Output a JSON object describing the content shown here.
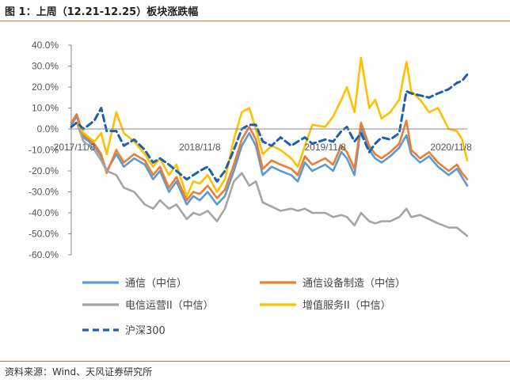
{
  "header": {
    "title": "图 1：上周（12.21-12.25）板块涨跌幅"
  },
  "footer": {
    "source": "资料来源：Wind、天风证券研究所"
  },
  "chart_data": {
    "type": "line",
    "title": "",
    "xlabel": "",
    "ylabel": "",
    "ylim": [
      -60,
      40
    ],
    "yticks": [
      40,
      30,
      20,
      10,
      0,
      -10,
      -20,
      -30,
      -40,
      -50,
      -60
    ],
    "ytick_labels": [
      "40.0%",
      "30.0%",
      "20.0%",
      "10.0%",
      "0.0%",
      "-10.0%",
      "-20.0%",
      "-30.0%",
      "-40.0%",
      "-50.0%",
      "-60.0%"
    ],
    "xlim": [
      "2017-10-30",
      "2020-12-25"
    ],
    "xtick_labels": [
      "2017/11/8",
      "2018/11/8",
      "2019/11/8",
      "2020/11/8"
    ],
    "xtick_dates": [
      "2017-11-08",
      "2018-11-08",
      "2019-11-08",
      "2020-11-08"
    ],
    "legend_position": "bottom",
    "series": [
      {
        "name": "通信（中信）",
        "color": "#5b9bd5",
        "dash": "solid",
        "points": [
          [
            "2017-10-30",
            2
          ],
          [
            "2017-11-15",
            6
          ],
          [
            "2017-12-05",
            -4
          ],
          [
            "2018-01-05",
            -8
          ],
          [
            "2018-01-25",
            -13
          ],
          [
            "2018-02-10",
            -20
          ],
          [
            "2018-03-10",
            -12
          ],
          [
            "2018-04-01",
            -18
          ],
          [
            "2018-05-01",
            -14
          ],
          [
            "2018-06-01",
            -17
          ],
          [
            "2018-06-25",
            -24
          ],
          [
            "2018-07-15",
            -20
          ],
          [
            "2018-08-10",
            -30
          ],
          [
            "2018-09-01",
            -25
          ],
          [
            "2018-10-01",
            -36
          ],
          [
            "2018-10-20",
            -32
          ],
          [
            "2018-11-08",
            -34
          ],
          [
            "2018-12-01",
            -30
          ],
          [
            "2018-12-28",
            -36
          ],
          [
            "2019-01-20",
            -32
          ],
          [
            "2019-02-15",
            -20
          ],
          [
            "2019-03-10",
            -8
          ],
          [
            "2019-04-01",
            -2
          ],
          [
            "2019-04-20",
            -8
          ],
          [
            "2019-05-10",
            -22
          ],
          [
            "2019-06-05",
            -18
          ],
          [
            "2019-07-01",
            -20
          ],
          [
            "2019-08-01",
            -22
          ],
          [
            "2019-08-20",
            -25
          ],
          [
            "2019-09-10",
            -16
          ],
          [
            "2019-10-01",
            -20
          ],
          [
            "2019-11-08",
            -17
          ],
          [
            "2019-12-01",
            -20
          ],
          [
            "2019-12-25",
            -11
          ],
          [
            "2020-01-10",
            -14
          ],
          [
            "2020-02-01",
            -22
          ],
          [
            "2020-02-20",
            1
          ],
          [
            "2020-03-15",
            -10
          ],
          [
            "2020-04-01",
            -14
          ],
          [
            "2020-04-20",
            -16
          ],
          [
            "2020-05-15",
            -13
          ],
          [
            "2020-06-10",
            -9
          ],
          [
            "2020-07-01",
            -3
          ],
          [
            "2020-07-15",
            -12
          ],
          [
            "2020-08-10",
            -16
          ],
          [
            "2020-09-05",
            -13
          ],
          [
            "2020-10-01",
            -18
          ],
          [
            "2020-11-01",
            -22
          ],
          [
            "2020-11-25",
            -19
          ],
          [
            "2020-12-10",
            -23
          ],
          [
            "2020-12-25",
            -27
          ]
        ]
      },
      {
        "name": "通信设备制造（中信）",
        "color": "#ed7d31",
        "dash": "solid",
        "points": [
          [
            "2017-10-30",
            3
          ],
          [
            "2017-11-15",
            7
          ],
          [
            "2017-12-05",
            -3
          ],
          [
            "2018-01-05",
            -7
          ],
          [
            "2018-01-25",
            -12
          ],
          [
            "2018-02-10",
            -21
          ],
          [
            "2018-03-10",
            -10
          ],
          [
            "2018-04-01",
            -16
          ],
          [
            "2018-05-01",
            -12
          ],
          [
            "2018-06-01",
            -15
          ],
          [
            "2018-06-25",
            -22
          ],
          [
            "2018-07-15",
            -18
          ],
          [
            "2018-08-10",
            -28
          ],
          [
            "2018-09-01",
            -23
          ],
          [
            "2018-10-01",
            -34
          ],
          [
            "2018-10-20",
            -30
          ],
          [
            "2018-11-08",
            -31
          ],
          [
            "2018-12-01",
            -27
          ],
          [
            "2018-12-28",
            -33
          ],
          [
            "2019-01-20",
            -29
          ],
          [
            "2019-02-15",
            -17
          ],
          [
            "2019-03-10",
            -5
          ],
          [
            "2019-04-01",
            1
          ],
          [
            "2019-04-20",
            -5
          ],
          [
            "2019-05-10",
            -19
          ],
          [
            "2019-06-05",
            -15
          ],
          [
            "2019-07-01",
            -17
          ],
          [
            "2019-08-01",
            -19
          ],
          [
            "2019-08-20",
            -22
          ],
          [
            "2019-09-10",
            -13
          ],
          [
            "2019-10-01",
            -17
          ],
          [
            "2019-11-08",
            -14
          ],
          [
            "2019-12-01",
            -17
          ],
          [
            "2019-12-25",
            -8
          ],
          [
            "2020-01-10",
            -11
          ],
          [
            "2020-02-01",
            -19
          ],
          [
            "2020-02-20",
            3
          ],
          [
            "2020-03-15",
            -8
          ],
          [
            "2020-04-01",
            -12
          ],
          [
            "2020-04-20",
            -14
          ],
          [
            "2020-05-15",
            -11
          ],
          [
            "2020-06-10",
            -7
          ],
          [
            "2020-07-01",
            4
          ],
          [
            "2020-07-15",
            -10
          ],
          [
            "2020-08-10",
            -14
          ],
          [
            "2020-09-05",
            -11
          ],
          [
            "2020-10-01",
            -16
          ],
          [
            "2020-11-01",
            -20
          ],
          [
            "2020-11-25",
            -17
          ],
          [
            "2020-12-10",
            -21
          ],
          [
            "2020-12-25",
            -24
          ]
        ]
      },
      {
        "name": "电信运营II（中信）",
        "color": "#a5a5a5",
        "dash": "solid",
        "points": [
          [
            "2017-10-30",
            1
          ],
          [
            "2017-11-15",
            3
          ],
          [
            "2017-12-05",
            -6
          ],
          [
            "2018-01-05",
            -10
          ],
          [
            "2018-01-25",
            -15
          ],
          [
            "2018-02-10",
            -20
          ],
          [
            "2018-03-10",
            -22
          ],
          [
            "2018-04-01",
            -28
          ],
          [
            "2018-05-01",
            -30
          ],
          [
            "2018-06-01",
            -36
          ],
          [
            "2018-06-25",
            -38
          ],
          [
            "2018-07-15",
            -34
          ],
          [
            "2018-08-10",
            -38
          ],
          [
            "2018-09-01",
            -36
          ],
          [
            "2018-10-01",
            -43
          ],
          [
            "2018-10-20",
            -40
          ],
          [
            "2018-11-08",
            -41
          ],
          [
            "2018-12-01",
            -39
          ],
          [
            "2018-12-28",
            -44
          ],
          [
            "2019-01-20",
            -38
          ],
          [
            "2019-02-15",
            -25
          ],
          [
            "2019-03-10",
            -21
          ],
          [
            "2019-04-01",
            -27
          ],
          [
            "2019-04-20",
            -25
          ],
          [
            "2019-05-10",
            -35
          ],
          [
            "2019-06-05",
            -37
          ],
          [
            "2019-07-01",
            -39
          ],
          [
            "2019-08-01",
            -38
          ],
          [
            "2019-08-20",
            -39
          ],
          [
            "2019-09-10",
            -38
          ],
          [
            "2019-10-01",
            -40
          ],
          [
            "2019-11-08",
            -40
          ],
          [
            "2019-12-01",
            -42
          ],
          [
            "2019-12-25",
            -41
          ],
          [
            "2020-01-10",
            -42
          ],
          [
            "2020-02-01",
            -46
          ],
          [
            "2020-02-20",
            -40
          ],
          [
            "2020-03-15",
            -44
          ],
          [
            "2020-04-01",
            -45
          ],
          [
            "2020-04-20",
            -44
          ],
          [
            "2020-05-15",
            -44
          ],
          [
            "2020-06-10",
            -42
          ],
          [
            "2020-07-01",
            -38
          ],
          [
            "2020-07-15",
            -42
          ],
          [
            "2020-08-10",
            -41
          ],
          [
            "2020-09-05",
            -43
          ],
          [
            "2020-10-01",
            -45
          ],
          [
            "2020-11-01",
            -47
          ],
          [
            "2020-11-25",
            -47
          ],
          [
            "2020-12-10",
            -49
          ],
          [
            "2020-12-25",
            -51
          ]
        ]
      },
      {
        "name": "增值服务II（中信）",
        "color": "#ffc000",
        "dash": "solid",
        "points": [
          [
            "2017-10-30",
            1
          ],
          [
            "2017-11-15",
            3
          ],
          [
            "2017-12-05",
            -2
          ],
          [
            "2018-01-05",
            -6
          ],
          [
            "2018-01-25",
            -2
          ],
          [
            "2018-02-10",
            -12
          ],
          [
            "2018-03-10",
            8
          ],
          [
            "2018-04-01",
            -2
          ],
          [
            "2018-05-01",
            -6
          ],
          [
            "2018-06-01",
            -12
          ],
          [
            "2018-06-25",
            -18
          ],
          [
            "2018-07-15",
            -14
          ],
          [
            "2018-08-10",
            -22
          ],
          [
            "2018-09-01",
            -17
          ],
          [
            "2018-10-01",
            -32
          ],
          [
            "2018-10-20",
            -25
          ],
          [
            "2018-11-08",
            -26
          ],
          [
            "2018-12-01",
            -22
          ],
          [
            "2018-12-28",
            -30
          ],
          [
            "2019-01-20",
            -24
          ],
          [
            "2019-02-15",
            -5
          ],
          [
            "2019-03-10",
            8
          ],
          [
            "2019-04-01",
            10
          ],
          [
            "2019-04-20",
            0
          ],
          [
            "2019-05-10",
            -12
          ],
          [
            "2019-06-05",
            -8
          ],
          [
            "2019-07-01",
            -10
          ],
          [
            "2019-08-01",
            -14
          ],
          [
            "2019-08-20",
            -18
          ],
          [
            "2019-09-10",
            -8
          ],
          [
            "2019-10-01",
            2
          ],
          [
            "2019-11-08",
            1
          ],
          [
            "2019-12-01",
            6
          ],
          [
            "2019-12-25",
            14
          ],
          [
            "2020-01-10",
            20
          ],
          [
            "2020-02-01",
            8
          ],
          [
            "2020-02-20",
            34
          ],
          [
            "2020-03-15",
            10
          ],
          [
            "2020-04-01",
            14
          ],
          [
            "2020-04-20",
            5
          ],
          [
            "2020-05-15",
            8
          ],
          [
            "2020-06-10",
            14
          ],
          [
            "2020-07-01",
            32
          ],
          [
            "2020-07-15",
            18
          ],
          [
            "2020-08-10",
            14
          ],
          [
            "2020-09-05",
            8
          ],
          [
            "2020-10-01",
            10
          ],
          [
            "2020-11-01",
            0
          ],
          [
            "2020-11-25",
            -1
          ],
          [
            "2020-12-10",
            -5
          ],
          [
            "2020-12-25",
            -15
          ]
        ]
      },
      {
        "name": "沪深300",
        "color": "#1f5fad",
        "dash": "dashed",
        "points": [
          [
            "2017-10-30",
            1
          ],
          [
            "2017-11-15",
            3
          ],
          [
            "2017-12-05",
            0
          ],
          [
            "2018-01-05",
            4
          ],
          [
            "2018-01-25",
            10
          ],
          [
            "2018-02-10",
            -1
          ],
          [
            "2018-03-10",
            -1
          ],
          [
            "2018-04-01",
            -8
          ],
          [
            "2018-05-01",
            -5
          ],
          [
            "2018-06-01",
            -10
          ],
          [
            "2018-06-25",
            -16
          ],
          [
            "2018-07-15",
            -14
          ],
          [
            "2018-08-10",
            -17
          ],
          [
            "2018-09-01",
            -20
          ],
          [
            "2018-10-01",
            -24
          ],
          [
            "2018-10-20",
            -22
          ],
          [
            "2018-11-08",
            -20
          ],
          [
            "2018-12-01",
            -18
          ],
          [
            "2018-12-28",
            -25
          ],
          [
            "2019-01-20",
            -20
          ],
          [
            "2019-02-15",
            -10
          ],
          [
            "2019-03-10",
            0
          ],
          [
            "2019-04-01",
            2
          ],
          [
            "2019-04-20",
            2
          ],
          [
            "2019-05-10",
            -6
          ],
          [
            "2019-06-05",
            -8
          ],
          [
            "2019-07-01",
            -4
          ],
          [
            "2019-08-01",
            -8
          ],
          [
            "2019-08-20",
            -6
          ],
          [
            "2019-09-10",
            -4
          ],
          [
            "2019-10-01",
            -7
          ],
          [
            "2019-11-08",
            -5
          ],
          [
            "2019-12-01",
            -6
          ],
          [
            "2019-12-25",
            -1
          ],
          [
            "2020-01-10",
            1
          ],
          [
            "2020-02-01",
            -6
          ],
          [
            "2020-02-20",
            -2
          ],
          [
            "2020-03-15",
            -11
          ],
          [
            "2020-04-01",
            -7
          ],
          [
            "2020-04-20",
            -4
          ],
          [
            "2020-05-15",
            -5
          ],
          [
            "2020-06-10",
            -2
          ],
          [
            "2020-07-01",
            18
          ],
          [
            "2020-07-15",
            17
          ],
          [
            "2020-08-10",
            16
          ],
          [
            "2020-09-05",
            15
          ],
          [
            "2020-10-01",
            17
          ],
          [
            "2020-11-01",
            19
          ],
          [
            "2020-11-25",
            22
          ],
          [
            "2020-12-10",
            23
          ],
          [
            "2020-12-25",
            26
          ]
        ]
      }
    ]
  }
}
